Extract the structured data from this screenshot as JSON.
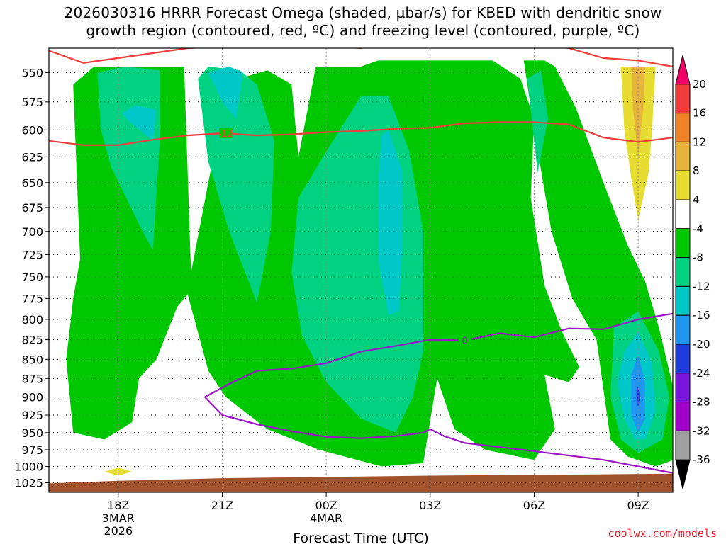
{
  "title_line1": "2026030316 HRRR Forecast Omega (shaded, µbar/s) for KBED with dendritic snow",
  "title_line2": "growth region (contoured, red, ºC) and freezing level (contoured, purple, ºC)",
  "credit": "coolwx.com/models",
  "chart_data": {
    "type": "contour",
    "xlabel": "Forecast Time (UTC)",
    "x_ticks": [
      {
        "hour": 0,
        "label": "18Z",
        "sub1": "3MAR",
        "sub2": "2026"
      },
      {
        "hour": 3,
        "label": "21Z",
        "sub1": "",
        "sub2": ""
      },
      {
        "hour": 6,
        "label": "00Z",
        "sub1": "4MAR",
        "sub2": ""
      },
      {
        "hour": 9,
        "label": "03Z",
        "sub1": "",
        "sub2": ""
      },
      {
        "hour": 12,
        "label": "06Z",
        "sub1": "",
        "sub2": ""
      },
      {
        "hour": 15,
        "label": "09Z",
        "sub1": "",
        "sub2": ""
      }
    ],
    "y_levels": [
      550,
      575,
      600,
      625,
      650,
      675,
      700,
      725,
      750,
      775,
      800,
      825,
      850,
      875,
      900,
      925,
      950,
      975,
      1000,
      1025
    ],
    "y_scale": "log-pressure",
    "grid": "dotted",
    "colorbar": {
      "levels": [
        20,
        16,
        12,
        8,
        4,
        -4,
        -8,
        -12,
        -16,
        -20,
        -24,
        -28,
        -32,
        -36
      ],
      "colors": [
        "#f00068",
        "#f03c3c",
        "#f08228",
        "#e6b43c",
        "#e6dc32",
        "#ffffff",
        "#00c800",
        "#00d282",
        "#00c8c8",
        "#1e96f0",
        "#1e3cdc",
        "#7814dc",
        "#a000c8",
        "#a0a0a0",
        "#000000"
      ]
    },
    "omega_regions": [
      {
        "level": -4,
        "color": "#00c800",
        "points": [
          [
            -1.3,
            560
          ],
          [
            -0.7,
            545
          ],
          [
            0.2,
            545
          ],
          [
            1.3,
            545
          ],
          [
            1.9,
            545
          ],
          [
            2.1,
            745
          ],
          [
            2.8,
            615
          ],
          [
            3.5,
            555
          ],
          [
            4.3,
            548
          ],
          [
            5.0,
            560
          ],
          [
            5.2,
            625
          ],
          [
            5.7,
            545
          ],
          [
            7.0,
            545
          ],
          [
            7.5,
            540
          ],
          [
            10.8,
            540
          ],
          [
            11.6,
            555
          ],
          [
            12.0,
            590
          ],
          [
            11.9,
            665
          ],
          [
            12.3,
            760
          ],
          [
            12.8,
            815
          ],
          [
            13.3,
            860
          ],
          [
            13.0,
            880
          ],
          [
            12.3,
            870
          ],
          [
            12.6,
            945
          ],
          [
            12.0,
            990
          ],
          [
            10.6,
            975
          ],
          [
            9.7,
            945
          ],
          [
            9.2,
            875
          ],
          [
            8.8,
            995
          ],
          [
            7.6,
            1000
          ],
          [
            5.8,
            975
          ],
          [
            4.3,
            945
          ],
          [
            3.1,
            900
          ],
          [
            2.6,
            865
          ],
          [
            2.0,
            770
          ],
          [
            1.7,
            785
          ],
          [
            1.1,
            850
          ],
          [
            0.6,
            875
          ],
          [
            0.4,
            935
          ],
          [
            -0.4,
            960
          ],
          [
            -1.3,
            950
          ],
          [
            -1.5,
            850
          ],
          [
            -1.3,
            775
          ],
          [
            -1.1,
            730
          ]
        ]
      },
      {
        "level": -4,
        "color": "#00c800",
        "points": [
          [
            12.3,
            540
          ],
          [
            12.6,
            545
          ],
          [
            13.2,
            580
          ],
          [
            14.0,
            650
          ],
          [
            14.7,
            715
          ],
          [
            15.2,
            755
          ],
          [
            15.6,
            810
          ],
          [
            16.0,
            885
          ],
          [
            16.3,
            985
          ],
          [
            15.5,
            1000
          ],
          [
            14.7,
            985
          ],
          [
            14.2,
            960
          ],
          [
            13.8,
            825
          ],
          [
            13.1,
            775
          ],
          [
            12.5,
            700
          ],
          [
            12.0,
            600
          ],
          [
            11.7,
            540
          ]
        ]
      },
      {
        "level": -8,
        "color": "#00d282",
        "points": [
          [
            -0.6,
            550
          ],
          [
            0.2,
            545
          ],
          [
            1.2,
            548
          ],
          [
            1.2,
            610
          ],
          [
            1.0,
            720
          ],
          [
            0.7,
            700
          ],
          [
            -0.2,
            635
          ],
          [
            -0.5,
            600
          ]
        ]
      },
      {
        "level": -8,
        "color": "#00d282",
        "points": [
          [
            2.3,
            555
          ],
          [
            2.6,
            545
          ],
          [
            3.5,
            548
          ],
          [
            4.0,
            560
          ],
          [
            4.5,
            610
          ],
          [
            4.4,
            700
          ],
          [
            4.0,
            780
          ],
          [
            3.2,
            700
          ],
          [
            2.6,
            630
          ]
        ]
      },
      {
        "level": -8,
        "color": "#00d282",
        "points": [
          [
            5.2,
            665
          ],
          [
            6.0,
            620
          ],
          [
            7.0,
            570
          ],
          [
            7.8,
            570
          ],
          [
            8.4,
            620
          ],
          [
            8.8,
            700
          ],
          [
            8.8,
            840
          ],
          [
            8.5,
            900
          ],
          [
            8.0,
            950
          ],
          [
            7.0,
            930
          ],
          [
            6.0,
            880
          ],
          [
            5.3,
            820
          ],
          [
            5.0,
            745
          ]
        ]
      },
      {
        "level": -8,
        "color": "#00d282",
        "points": [
          [
            11.8,
            555
          ],
          [
            12.2,
            548
          ],
          [
            12.4,
            590
          ],
          [
            12.1,
            640
          ]
        ]
      },
      {
        "level": -8,
        "color": "#00d282",
        "points": [
          [
            14.3,
            810
          ],
          [
            15.0,
            790
          ],
          [
            15.6,
            840
          ],
          [
            15.9,
            900
          ],
          [
            15.7,
            960
          ],
          [
            15.0,
            980
          ],
          [
            14.5,
            960
          ],
          [
            14.2,
            900
          ]
        ]
      },
      {
        "level": -12,
        "color": "#00c8c8",
        "points": [
          [
            0.1,
            585
          ],
          [
            0.5,
            578
          ],
          [
            1.1,
            582
          ],
          [
            1.0,
            610
          ],
          [
            0.7,
            602
          ],
          [
            0.3,
            592
          ]
        ]
      },
      {
        "level": -12,
        "color": "#00c8c8",
        "points": [
          [
            2.6,
            550
          ],
          [
            3.2,
            545
          ],
          [
            3.6,
            550
          ],
          [
            3.4,
            590
          ],
          [
            3.0,
            575
          ]
        ]
      },
      {
        "level": -12,
        "color": "#00c8c8",
        "points": [
          [
            7.6,
            605
          ],
          [
            7.8,
            600
          ],
          [
            8.2,
            640
          ],
          [
            8.2,
            710
          ],
          [
            8.1,
            790
          ],
          [
            7.8,
            795
          ],
          [
            7.5,
            730
          ],
          [
            7.5,
            650
          ]
        ]
      },
      {
        "level": -12,
        "color": "#00c8c8",
        "points": [
          [
            14.6,
            840
          ],
          [
            15.0,
            815
          ],
          [
            15.4,
            855
          ],
          [
            15.5,
            920
          ],
          [
            15.2,
            960
          ],
          [
            14.9,
            960
          ],
          [
            14.6,
            930
          ],
          [
            14.4,
            880
          ]
        ]
      },
      {
        "level": -16,
        "color": "#1e96f0",
        "points": [
          [
            14.8,
            870
          ],
          [
            15.0,
            845
          ],
          [
            15.2,
            880
          ],
          [
            15.2,
            930
          ],
          [
            15.0,
            950
          ],
          [
            14.8,
            925
          ]
        ]
      },
      {
        "level": -20,
        "color": "#1e3cdc",
        "points": [
          [
            14.95,
            890
          ],
          [
            15.0,
            885
          ],
          [
            15.05,
            900
          ],
          [
            15.0,
            915
          ],
          [
            14.95,
            905
          ]
        ]
      },
      {
        "level": 4,
        "color": "#e6dc32",
        "points": [
          [
            14.5,
            545
          ],
          [
            15.5,
            545
          ],
          [
            15.4,
            600
          ],
          [
            15.3,
            640
          ],
          [
            15.0,
            688
          ],
          [
            14.8,
            645
          ],
          [
            14.6,
            600
          ]
        ]
      },
      {
        "level": 8,
        "color": "#e6b43c",
        "points": [
          [
            14.8,
            545
          ],
          [
            15.2,
            545
          ],
          [
            15.15,
            580
          ],
          [
            15.0,
            625
          ],
          [
            14.85,
            580
          ]
        ]
      },
      {
        "level": 4,
        "color": "#e6dc32",
        "points": [
          [
            -0.4,
            1008
          ],
          [
            0.0,
            1002
          ],
          [
            0.4,
            1008
          ],
          [
            0.0,
            1014
          ]
        ]
      }
    ],
    "red_contours": [
      {
        "label": "",
        "points": [
          [
            -2,
            532
          ],
          [
            -1.0,
            542
          ],
          [
            0.0,
            538
          ],
          [
            2.0,
            530
          ],
          [
            3.5,
            528
          ],
          [
            5.0,
            528
          ],
          [
            6.0,
            528
          ],
          [
            7.0,
            530
          ],
          [
            8.0,
            522
          ],
          [
            9.0,
            515
          ],
          [
            10.5,
            515
          ],
          [
            11.5,
            525
          ],
          [
            13.0,
            530
          ],
          [
            14.0,
            538
          ],
          [
            15.0,
            540
          ],
          [
            16.0,
            545
          ]
        ]
      },
      {
        "label": "-12",
        "label_x": 3.1,
        "points": [
          [
            -2,
            610
          ],
          [
            -1.0,
            614
          ],
          [
            0.0,
            614
          ],
          [
            1.0,
            609
          ],
          [
            2.0,
            605
          ],
          [
            3.0,
            603
          ],
          [
            4.0,
            605
          ],
          [
            5.0,
            604
          ],
          [
            6.0,
            602
          ],
          [
            7.0,
            601
          ],
          [
            8.0,
            599
          ],
          [
            9.0,
            598
          ],
          [
            10.0,
            594
          ],
          [
            11.0,
            593
          ],
          [
            12.0,
            593
          ],
          [
            13.0,
            595
          ],
          [
            14.0,
            607
          ],
          [
            15.0,
            611
          ],
          [
            16.0,
            607
          ]
        ]
      }
    ],
    "purple_contours": [
      {
        "label": "0",
        "label_x": 10.0,
        "points": [
          [
            2.5,
            900
          ],
          [
            3.3,
            880
          ],
          [
            4.0,
            865
          ],
          [
            5.0,
            862
          ],
          [
            6.0,
            855
          ],
          [
            7.0,
            840
          ],
          [
            8.0,
            833
          ],
          [
            9.0,
            825
          ],
          [
            10.0,
            826
          ],
          [
            11.0,
            817
          ],
          [
            12.0,
            822
          ],
          [
            13.0,
            811
          ],
          [
            14.0,
            812
          ],
          [
            15.0,
            800
          ],
          [
            16.0,
            793
          ]
        ]
      },
      {
        "label": "",
        "points": [
          [
            2.5,
            900
          ],
          [
            3.0,
            925
          ],
          [
            4.0,
            938
          ],
          [
            5.0,
            948
          ],
          [
            6.0,
            956
          ],
          [
            7.0,
            958
          ],
          [
            8.0,
            955
          ],
          [
            8.8,
            950
          ],
          [
            9.0,
            945
          ],
          [
            9.4,
            955
          ],
          [
            10.0,
            965
          ],
          [
            12.0,
            977
          ],
          [
            14.0,
            990
          ],
          [
            15.0,
            1000
          ],
          [
            16.0,
            1010
          ]
        ]
      }
    ],
    "terrain": {
      "color": "#a0522d",
      "points": [
        [
          -2,
          1026
        ],
        [
          0,
          1022
        ],
        [
          3,
          1018
        ],
        [
          6,
          1016
        ],
        [
          9,
          1014
        ],
        [
          12,
          1013
        ],
        [
          14,
          1012
        ],
        [
          16,
          1011
        ]
      ]
    }
  }
}
